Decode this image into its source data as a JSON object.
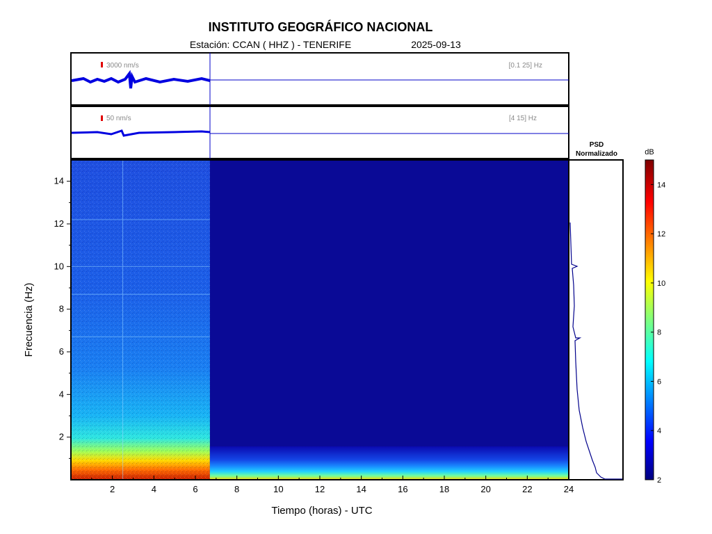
{
  "chart_data": {
    "type": "heatmap",
    "title": "INSTITUTO GEOGRÁFICO NACIONAL",
    "station_label": "Estación:  CCAN ( HHZ ) - TENERIFE",
    "date": "2025-09-13",
    "xlabel": "Tiempo (horas) - UTC",
    "ylabel": "Frecuencia  (Hz)",
    "xlim": [
      0,
      24
    ],
    "ylim": [
      0,
      15
    ],
    "x_ticks": [
      2,
      4,
      6,
      8,
      10,
      12,
      14,
      16,
      18,
      20,
      22,
      24
    ],
    "y_ticks": [
      2,
      4,
      6,
      8,
      10,
      12,
      14
    ],
    "data_end_hour": 6.7,
    "traces": [
      {
        "scale_label": "3000 nm/s",
        "band_label": "[0.1 25] Hz"
      },
      {
        "scale_label": "50 nm/s",
        "band_label": "[4 15] Hz"
      }
    ],
    "psd_label_1": "PSD",
    "psd_label_2": "Normalizado",
    "colorbar": {
      "unit": "dB",
      "min": 2,
      "max": 15,
      "ticks": [
        2,
        4,
        6,
        8,
        10,
        12,
        14
      ]
    }
  }
}
